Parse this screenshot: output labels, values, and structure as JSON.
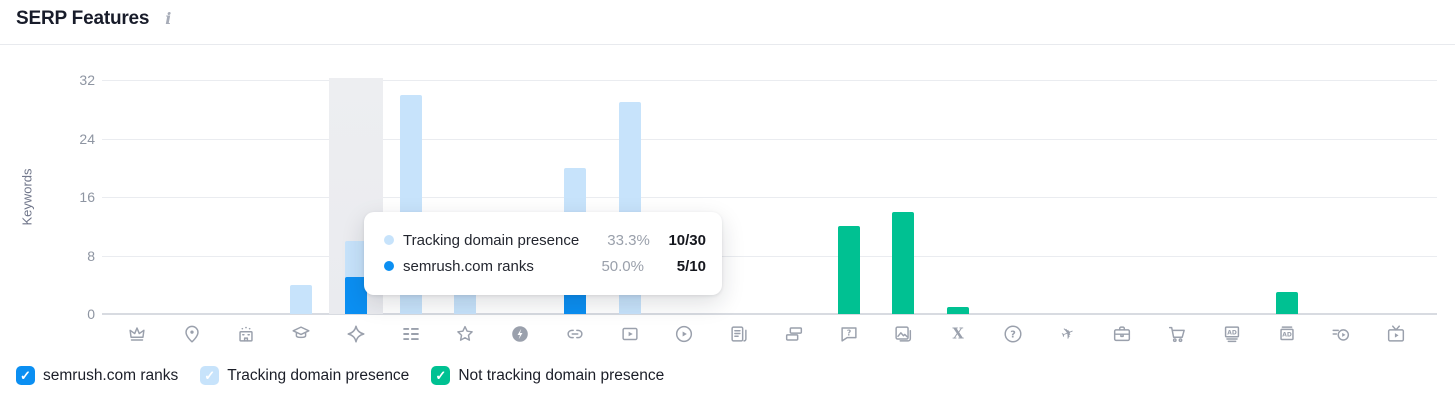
{
  "header": {
    "title": "SERP Features",
    "info_glyph": "i"
  },
  "colors": {
    "ranks": "#0b8ff2",
    "tracking": "#c7e3fb",
    "not_tracking": "#00c192",
    "hover_band": "#ebedf1",
    "icon_gray": "#9aa0ac"
  },
  "chart_data": {
    "type": "bar",
    "title": "SERP Features",
    "ylabel": "Keywords",
    "xlabel": "",
    "ylim": [
      0,
      32
    ],
    "yticks": [
      0,
      8,
      16,
      24,
      32
    ],
    "grid": true,
    "legend_position": "bottom",
    "series_names": [
      "semrush.com ranks",
      "Tracking domain presence",
      "Not tracking domain presence"
    ],
    "columns": [
      {
        "icon": "crown"
      },
      {
        "icon": "local-pack-pin"
      },
      {
        "icon": "hotel-pack-building"
      },
      {
        "icon": "knowledge-panel-cap",
        "tracking": 4
      },
      {
        "icon": "featured-snippet-diamond",
        "tracking": 10,
        "ranks": 5,
        "hovered": true
      },
      {
        "icon": "sitelinks-list",
        "tracking": 30
      },
      {
        "icon": "reviews-star",
        "tracking": 4
      },
      {
        "icon": "amp-bolt"
      },
      {
        "icon": "url-link",
        "tracking": 20,
        "ranks": 3
      },
      {
        "icon": "featured-video",
        "tracking": 29
      },
      {
        "icon": "video-carousel-play"
      },
      {
        "icon": "top-stories-news"
      },
      {
        "icon": "carousel-cards"
      },
      {
        "icon": "faq-question-bubble",
        "not_tracking": 12
      },
      {
        "icon": "image-pack",
        "not_tracking": 14
      },
      {
        "icon": "x-twitter",
        "not_tracking": 1
      },
      {
        "icon": "people-also-ask-circle"
      },
      {
        "icon": "flights-plane"
      },
      {
        "icon": "jobs-briefcase"
      },
      {
        "icon": "shopping-cart"
      },
      {
        "icon": "ads-top"
      },
      {
        "icon": "ads-bottom",
        "not_tracking": 3
      },
      {
        "icon": "video-preview"
      },
      {
        "icon": "tv-stories"
      }
    ]
  },
  "tooltip": {
    "rows": [
      {
        "series": "tracking",
        "label": "Tracking domain presence",
        "percent": "33.3%",
        "fraction": "10/30"
      },
      {
        "series": "ranks",
        "label": "semrush.com ranks",
        "percent": "50.0%",
        "fraction": "5/10"
      }
    ]
  },
  "legend": [
    {
      "series": "ranks",
      "label": "semrush.com ranks",
      "checked": true
    },
    {
      "series": "tracking",
      "label": "Tracking domain presence",
      "checked": true
    },
    {
      "series": "not_tracking",
      "label": "Not tracking domain presence",
      "checked": true
    }
  ]
}
